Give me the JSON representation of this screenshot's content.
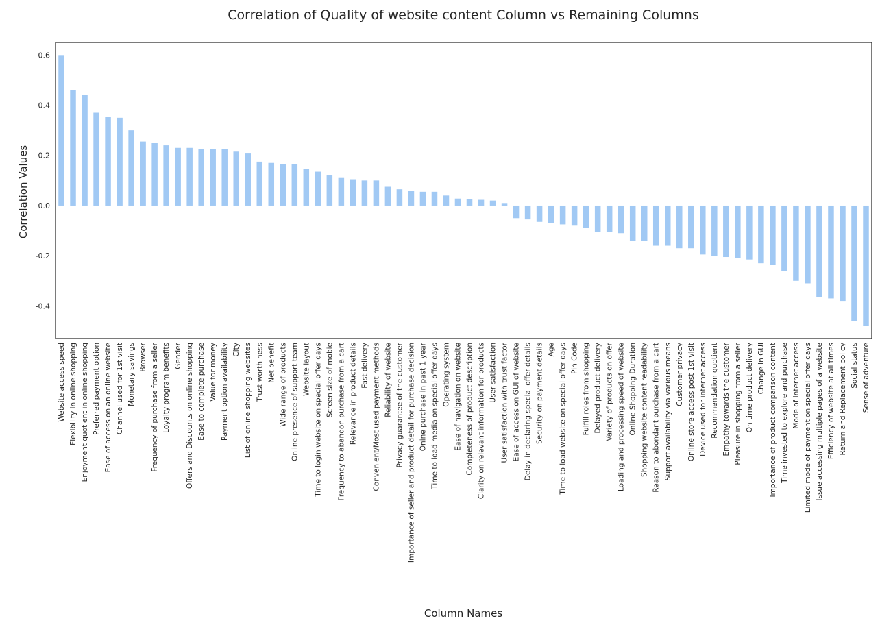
{
  "chart_data": {
    "type": "bar",
    "title": "Correlation of Quality of website content Column vs Remaining Columns",
    "xlabel": "Column Names",
    "ylabel": "Correlation Values",
    "ylim": [
      -0.53,
      0.65
    ],
    "yticks": [
      -0.4,
      -0.2,
      0.0,
      0.2,
      0.4,
      0.6
    ],
    "ytick_labels": [
      "-0.4",
      "-0.2",
      "0.0",
      "0.2",
      "0.4",
      "0.6"
    ],
    "grid": false,
    "bar_color": "#a1c9f4",
    "categories": [
      "Website access speed",
      "Flexibility in online shopping",
      "Enjoyment quotient in online shopping",
      "Preferred payment option",
      "Ease of access on an online website",
      "Channel used for 1st visit",
      "Monetary savings",
      "Browser",
      "Frequency of purchase from a seller",
      "Loyalty program benefits",
      "Gender",
      "Offers and Discounts on online shopping",
      "Ease to complete purchase",
      "Value for money",
      "Payment option availability",
      "City",
      "List of online shopping websites",
      "Trust worthiness",
      "Net benefit",
      "Wide range of products",
      "Online presence of support team",
      "Website layout",
      "Time to login website on special offer days",
      "Screen size of mobie",
      "Frequency to abandon purchase from a cart",
      "Relevance in product details",
      "Fast delivery",
      "Convenient/Most used payment methods",
      "Reliability of website",
      "Privacy guarantee of the customer",
      "Importance of seller and product detail for purchase decision",
      "Onine purchase in past 1 year",
      "Time to load media on special offer days",
      "Operating system",
      "Ease of navigation on website",
      "Completeness of product description",
      "Clarity on relevant information for products",
      "User satisfaction",
      "User satisfaction with trust factor",
      "Ease of access on GUI of website",
      "Delay in declaring special offer details",
      "Security on payment details",
      "Age",
      "Time to load website on special offer days",
      "Pin Code",
      "Fulfill roles from shopping",
      "Delayed product delivery",
      "Variety of products on offer",
      "Loading and processing speed of website",
      "Online Shopping Duration",
      "Shopping website content readability",
      "Reason to abondant purchase from a cart",
      "Support availability via various means",
      "Customer privacy",
      "Online store access post 1st visit",
      "Device used for internet access",
      "Recommendation quotient",
      "Empathy towards the customer",
      "Pleasure in shopping from a seller",
      "On time product delivery",
      "Change in GUI",
      "Importance of product comparison content",
      "Time invested to explore and purchase",
      "Mode of internet access",
      "Limited mode of payment on special offer days",
      "Issue accessing multiple pages of a website",
      "Efficiency of website at all times",
      "Return and Replacement policy",
      "Social status",
      "Sense of adventure"
    ],
    "values": [
      0.6,
      0.46,
      0.44,
      0.37,
      0.355,
      0.35,
      0.3,
      0.255,
      0.25,
      0.24,
      0.23,
      0.23,
      0.225,
      0.225,
      0.225,
      0.215,
      0.21,
      0.175,
      0.17,
      0.165,
      0.165,
      0.145,
      0.135,
      0.12,
      0.11,
      0.105,
      0.1,
      0.1,
      0.075,
      0.065,
      0.06,
      0.055,
      0.055,
      0.04,
      0.028,
      0.025,
      0.023,
      0.02,
      0.01,
      -0.05,
      -0.055,
      -0.065,
      -0.07,
      -0.075,
      -0.08,
      -0.09,
      -0.105,
      -0.105,
      -0.11,
      -0.14,
      -0.14,
      -0.16,
      -0.16,
      -0.17,
      -0.17,
      -0.195,
      -0.2,
      -0.205,
      -0.21,
      -0.215,
      -0.23,
      -0.235,
      -0.26,
      -0.3,
      -0.31,
      -0.365,
      -0.37,
      -0.38,
      -0.46,
      -0.48
    ]
  }
}
